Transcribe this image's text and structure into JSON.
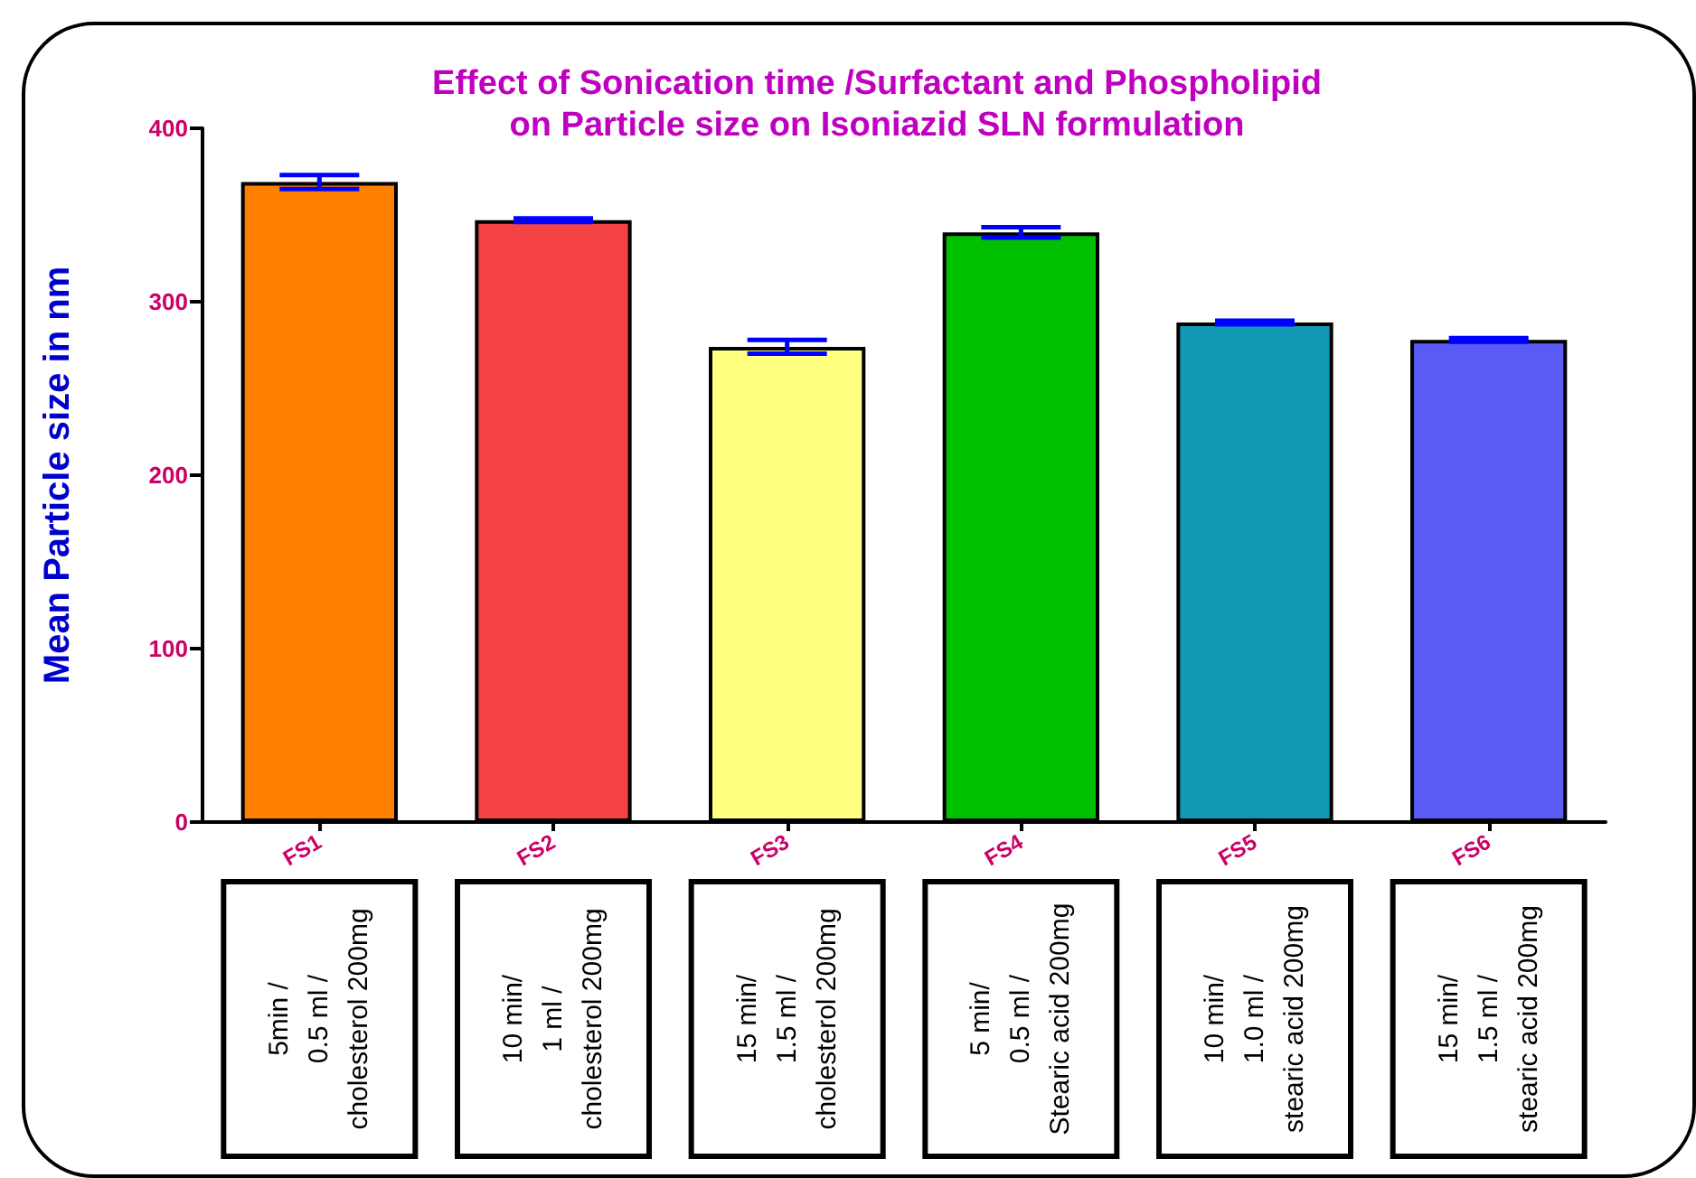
{
  "chart_data": {
    "type": "bar",
    "title": "Effect of Sonication time /Surfactant and Phospholipid\non Particle size on Isoniazid SLN formulation",
    "ylabel": "Mean Particle size in nm",
    "categories": [
      "FS1",
      "FS2",
      "FS3",
      "FS4",
      "FS5",
      "FS6"
    ],
    "values": [
      369,
      347,
      274,
      340,
      288,
      278
    ],
    "errors": [
      4,
      1,
      4,
      3,
      1,
      1
    ],
    "colors": [
      "#ff8000",
      "#f54242",
      "#ffff80",
      "#00c000",
      "#1098b5",
      "#5a5af5"
    ],
    "ylim": [
      0,
      400
    ],
    "yticks": [
      0,
      100,
      200,
      300,
      400
    ],
    "grid": false,
    "annotations": [
      "5min /\n0.5 ml /\ncholesterol 200mg",
      "10 min/\n1 ml /\ncholesterol 200mg",
      "15 min/\n1.5 ml /\ncholesterol 200mg",
      "5 min/\n0.5 ml /\nStearic acid 200mg",
      "10 min/\n1.0 ml /\nstearic acid 200mg",
      "15 min/\n1.5 ml /\nstearic acid 200mg"
    ]
  }
}
